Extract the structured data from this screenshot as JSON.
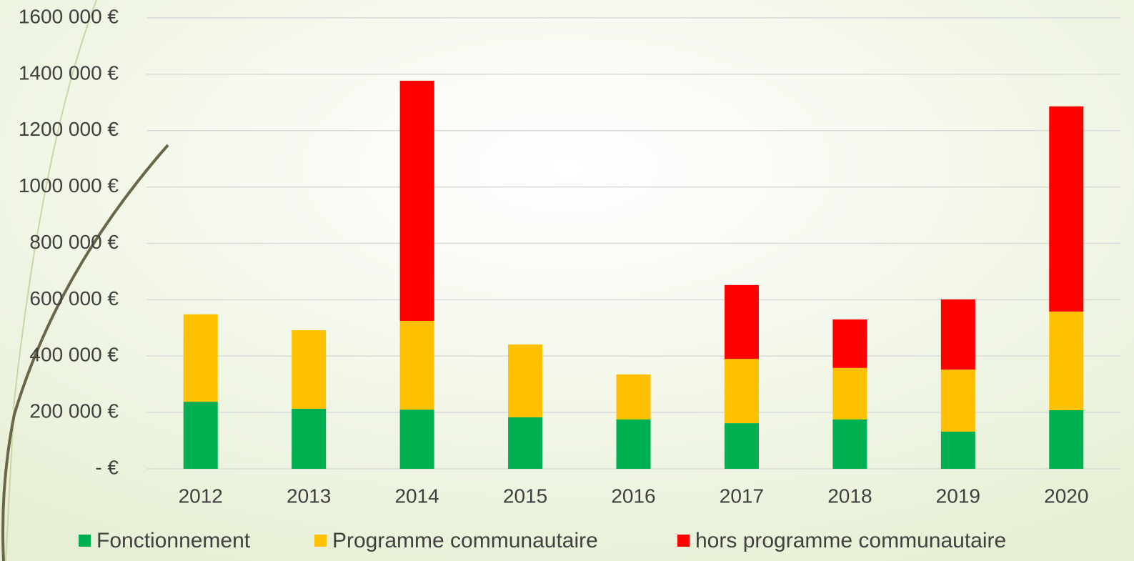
{
  "chart_data": {
    "type": "stacked_bar",
    "categories": [
      "2012",
      "2013",
      "2014",
      "2015",
      "2016",
      "2017",
      "2018",
      "2019",
      "2020"
    ],
    "series": [
      {
        "name": "Fonctionnement",
        "color": "#00b050",
        "values": [
          238000,
          213000,
          210000,
          183000,
          175000,
          162000,
          175000,
          132000,
          208000
        ]
      },
      {
        "name": "Programme communautaire",
        "color": "#ffc000",
        "values": [
          310000,
          279000,
          315000,
          258000,
          160000,
          228000,
          183000,
          220000,
          350000
        ]
      },
      {
        "name": "hors programme communautaire",
        "color": "#ff0000",
        "values": [
          0,
          0,
          852000,
          0,
          0,
          262000,
          172000,
          249000,
          728000
        ]
      }
    ],
    "ylim": [
      0,
      1600000
    ],
    "yticks": [
      {
        "value": 0,
        "label": "-   €"
      },
      {
        "value": 200000,
        "label": "200 000 €"
      },
      {
        "value": 400000,
        "label": "400 000 €"
      },
      {
        "value": 600000,
        "label": "600 000 €"
      },
      {
        "value": 800000,
        "label": "800 000 €"
      },
      {
        "value": 1000000,
        "label": "1000 000 €"
      },
      {
        "value": 1200000,
        "label": "1200 000 €"
      },
      {
        "value": 1400000,
        "label": "1400 000 €"
      },
      {
        "value": 1600000,
        "label": "1600 000 €"
      }
    ],
    "grid": true,
    "legend": "bottom"
  }
}
